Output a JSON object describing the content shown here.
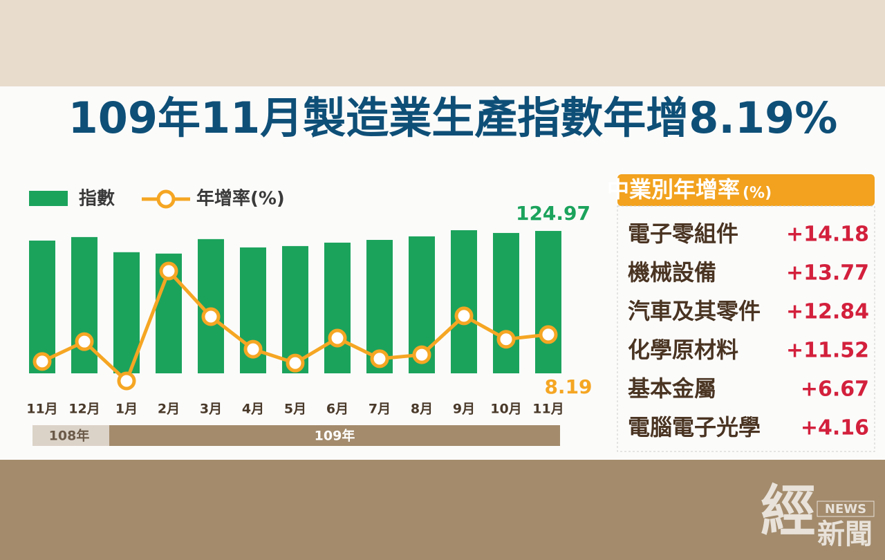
{
  "chart_data": {
    "type": "bar-line",
    "title": "109年11月製造業生產指數年增8.19%",
    "categories": [
      "11月",
      "12月",
      "1月",
      "2月",
      "3月",
      "4月",
      "5月",
      "6月",
      "7月",
      "8月",
      "9月",
      "10月",
      "11月"
    ],
    "year_groups": [
      "108年",
      "109年"
    ],
    "series": [
      {
        "name": "指數",
        "type": "bar",
        "color": "#1ba35c",
        "values": [
          116.5,
          119.6,
          106.3,
          105.1,
          117.8,
          110.5,
          111.7,
          114.7,
          117.1,
          120.2,
          125.6,
          123.2,
          124.97
        ]
      },
      {
        "name": "年增率(%)",
        "type": "line",
        "color": "#f5a623",
        "values": [
          1.4,
          6.4,
          -3.5,
          24.2,
          12.7,
          4.5,
          1.0,
          7.3,
          2.1,
          3.1,
          12.9,
          7.0,
          8.19
        ]
      }
    ]
  },
  "table": {
    "title": "中業別年增率",
    "unit": "(%)",
    "rows": [
      [
        "電子零組件",
        "+14.18"
      ],
      [
        "機械設備",
        "+13.77"
      ],
      [
        "汽車及其零件",
        "+12.84"
      ],
      [
        "化學原材料",
        "+11.52"
      ],
      [
        "基本金屬",
        "+6.67"
      ],
      [
        "電腦電子光學",
        "+4.16"
      ]
    ]
  },
  "watermark": {
    "main": "經",
    "sub": "新聞",
    "tag": "NEWS"
  }
}
